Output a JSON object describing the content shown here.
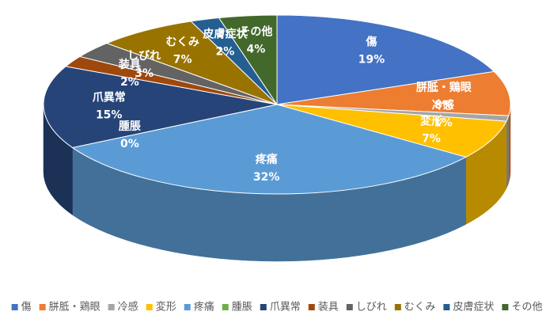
{
  "chart_data": {
    "type": "pie3d",
    "categories": [
      "傷",
      "胼胝・鶏眼",
      "冷感",
      "変形",
      "疼痛",
      "腫脹",
      "爪異常",
      "装具",
      "しびれ",
      "むくみ",
      "皮膚症状",
      "その他"
    ],
    "values": [
      19,
      8,
      1,
      7,
      32,
      0,
      15,
      2,
      3,
      7,
      2,
      4
    ],
    "value_labels": [
      "19%",
      "8%",
      "1%",
      "7%",
      "32%",
      "0%",
      "15%",
      "2%",
      "3%",
      "7%",
      "2%",
      "4%"
    ],
    "colors": [
      "#4472c4",
      "#ed7d31",
      "#a5a5a5",
      "#ffc000",
      "#5b9bd5",
      "#70ad47",
      "#264478",
      "#9e480e",
      "#636363",
      "#997300",
      "#255e91",
      "#43682b"
    ],
    "legend": "bottom"
  }
}
